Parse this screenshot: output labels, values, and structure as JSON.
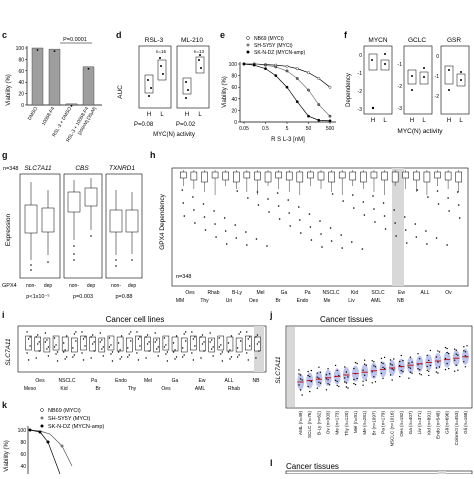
{
  "panels": {
    "c": {
      "letter": "c",
      "ylabel": "Viability (%)",
      "pvalue": "P=0.0001",
      "chart_data": {
        "type": "bar",
        "ylabel": "Viability (%)",
        "ylim": [
          0,
          100
        ],
        "yticks": [
          0,
          20,
          40,
          60,
          80,
          100
        ],
        "categories": [
          "DMSO",
          "10058-F4",
          "RSL-3 + DMSO",
          "RSL-3 + 10058-F4"
        ],
        "concentration_label": "[200nM] [30μM]",
        "values": [
          100,
          98,
          2,
          67
        ]
      }
    },
    "d": {
      "letter": "d",
      "ylabel": "AUC",
      "titles": [
        "RSL-3",
        "ML-210"
      ],
      "n_labels": [
        "n=16",
        "n=13"
      ],
      "group_labels": [
        "H",
        "L"
      ],
      "pvalues": [
        "P=0.08",
        "P=0.02"
      ],
      "xlabel": "MYC(N) activity"
    },
    "e": {
      "letter": "e",
      "ylabel": "Viability (%)",
      "xlabel": "R S L-3 [nM]",
      "legend": [
        "NB69 (MYCt)",
        "SH-SY5Y (MYCt)",
        "SK-N-DZ (MYCN-amp)"
      ],
      "chart_data": {
        "type": "line",
        "xlabel": "R S L-3 [nM]",
        "ylabel": "Viability (%)",
        "x_ticks": [
          "0.05",
          "0.5",
          "5",
          "50",
          "500"
        ],
        "ylim": [
          0,
          100
        ],
        "yticks": [
          0,
          20,
          40,
          60,
          80,
          100
        ],
        "x": [
          0.05,
          0.15,
          0.5,
          1.5,
          5,
          15,
          50,
          150,
          500
        ],
        "series": [
          {
            "name": "NB69 (MYCt)",
            "values": [
              100,
              100,
              99,
              98,
              96,
              92,
              85,
              75,
              60
            ]
          },
          {
            "name": "SH-SY5Y (MYCt)",
            "values": [
              100,
              100,
              98,
              95,
              88,
              75,
              55,
              30,
              10
            ]
          },
          {
            "name": "SK-N-DZ (MYCN-amp)",
            "values": [
              100,
              98,
              92,
              80,
              60,
              35,
              10,
              3,
              2
            ]
          }
        ]
      }
    },
    "f": {
      "letter": "f",
      "ylabel": "Dependency",
      "titles": [
        "MYCN",
        "GCLC",
        "GSR"
      ],
      "group_labels": [
        "H",
        "L"
      ],
      "xlabel": "MYC(N) activity",
      "yticks": [
        "0",
        "-1",
        "-2",
        "-3"
      ]
    },
    "g": {
      "letter": "g",
      "n": "n=348",
      "titles": [
        "SLC7A11",
        "CBS",
        "TXNRD1"
      ],
      "ylabel": "Expression",
      "row_label": "GPX4",
      "group_labels": [
        "non-",
        "dep",
        "non-",
        "dep",
        "non-",
        "dep"
      ],
      "pvalues": [
        "p<1x10⁻⁵",
        "p=0.003",
        "p=0.88"
      ]
    },
    "h": {
      "letter": "h",
      "ylabel": "GPX4 Dependency",
      "n": "n=348",
      "xticks_top": [
        "Oes",
        "Rhab",
        "B-Ly",
        "Mel",
        "Ga",
        "Pa",
        "NSCLC",
        "Kid",
        "SCLC",
        "Ew",
        "ALL",
        "Ov"
      ],
      "xticks_bottom": [
        "MM",
        "Thy",
        "Uri",
        "Oes",
        "Br",
        "Endo",
        "Me",
        "Liv",
        "AML",
        "NB"
      ]
    },
    "i": {
      "letter": "i",
      "title": "Cancer cell lines",
      "ylabel": "SLC7A11",
      "xticks_top": [
        "Oes",
        "NSCLC",
        "Pa",
        "Endo",
        "Mel",
        "Ga",
        "Ew",
        "ALL",
        "NB"
      ],
      "xticks_bottom": [
        "Meso",
        "Kid",
        "Br",
        "Thy",
        "Oes",
        "AML",
        "Rhab"
      ]
    },
    "j": {
      "letter": "j",
      "title": "Cancer tissues",
      "ylabel": "SLC7A11",
      "xticks": [
        "AML (n=49)",
        "SCLC (n=76)",
        "B-Ly (n=62)",
        "Ov (n=303)",
        "Me (n=173)",
        "Thy (n=120)",
        "Mel (n=91)",
        "Me (n=281)",
        "Br (n=1097)",
        "Pa (n=179)",
        "NSCLC (n=1016)",
        "Oes (n=182)",
        "Ga (n=407)",
        "Liv (n=371)",
        "Kid (n=891)",
        "Endo (n=548)",
        "Gli (n=696)",
        "Colorect (n=453)",
        "Gli (n=168)"
      ]
    },
    "k": {
      "letter": "k",
      "ylabel": "Viability (%)",
      "legend": [
        "NB69 (MYCt)",
        "SH-SY5Y (MYCt)",
        "SK-N-DZ (MYCN-amp)"
      ],
      "yticks": [
        "100",
        "80",
        "60",
        "40"
      ]
    },
    "l": {
      "letter": "l",
      "title": "Cancer tissues"
    }
  }
}
